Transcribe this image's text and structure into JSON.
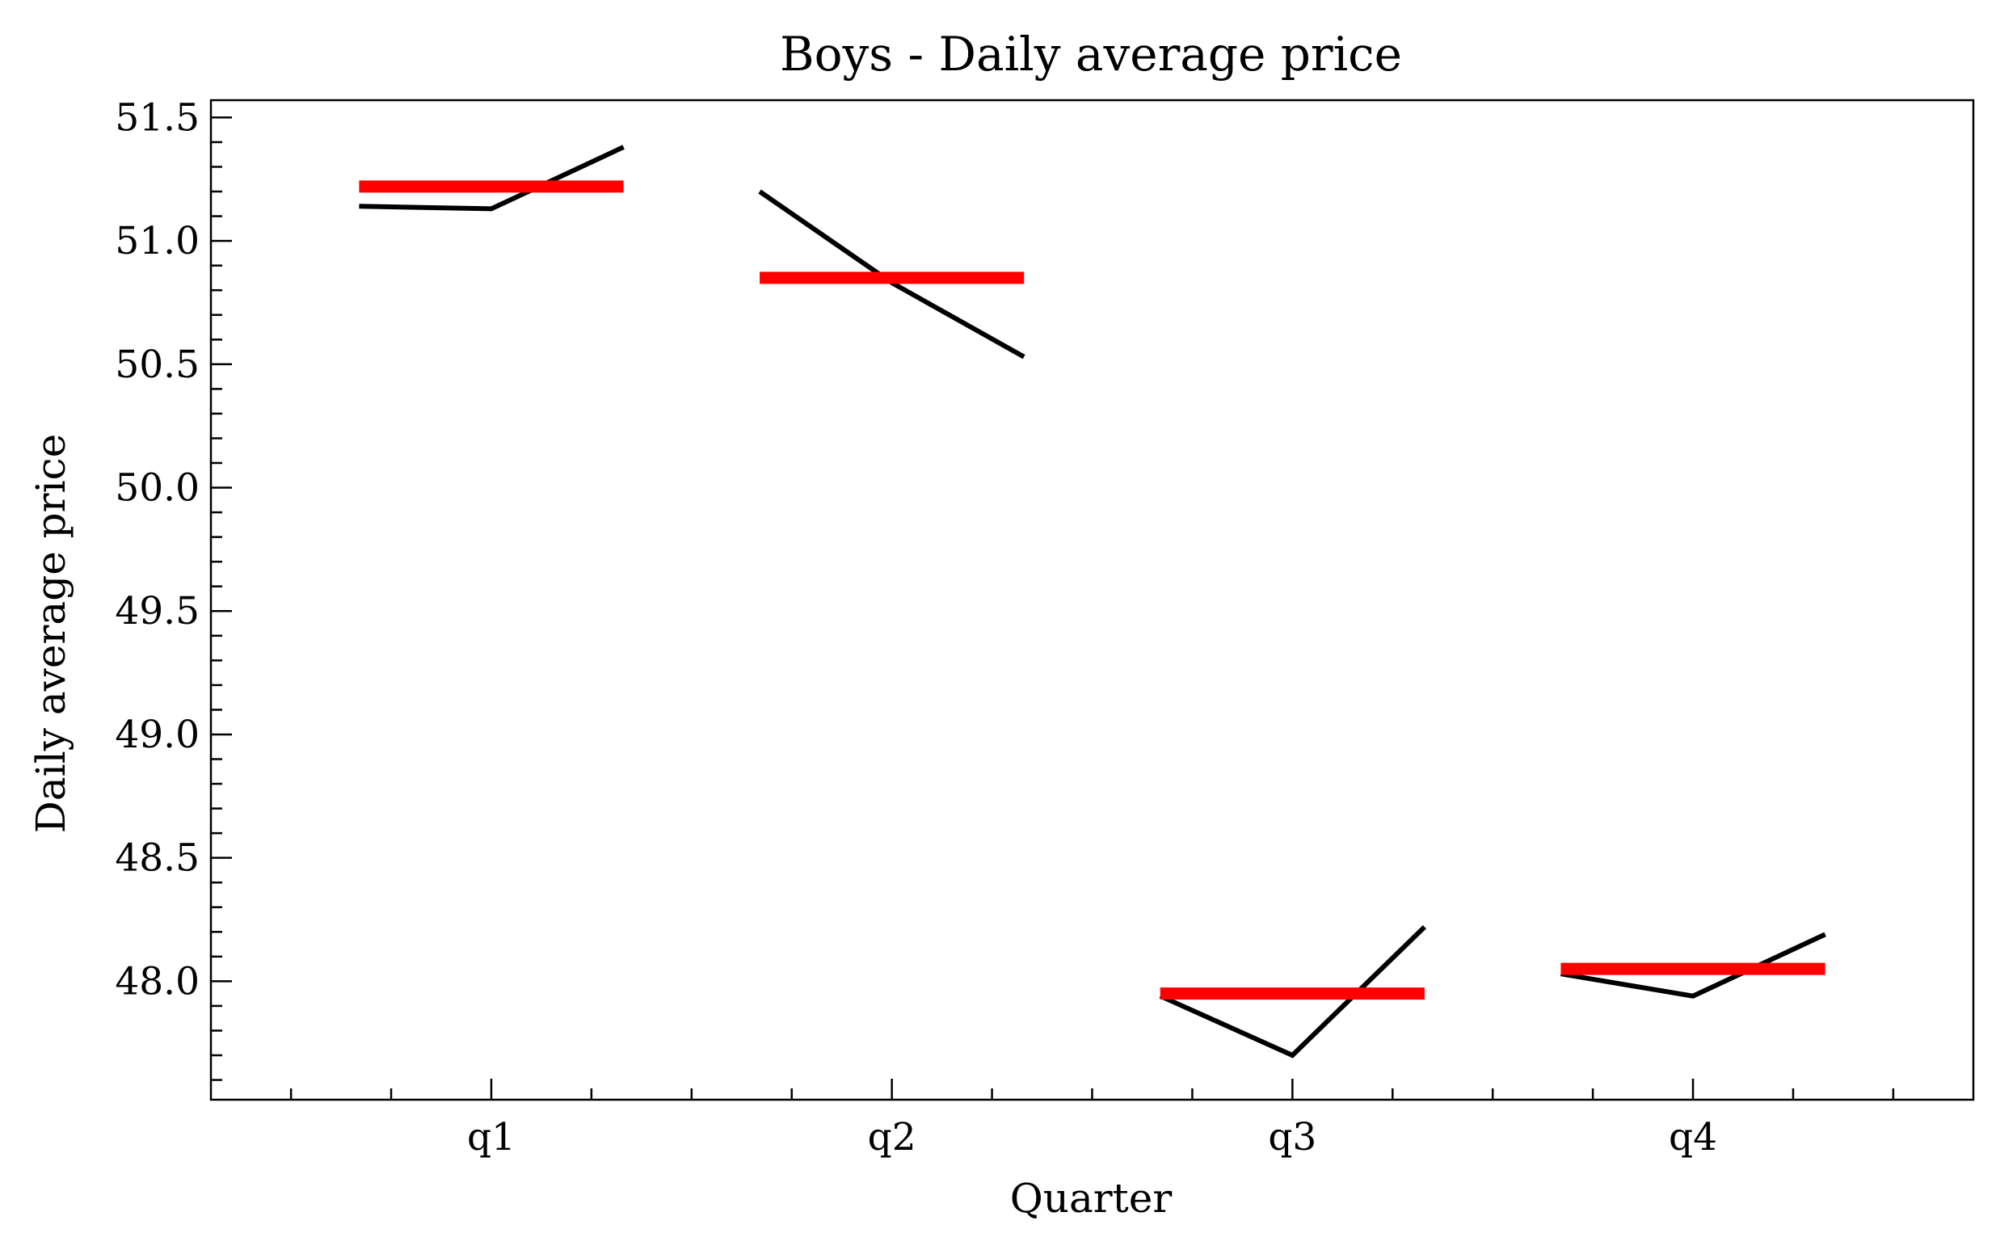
{
  "chart_data": {
    "type": "line",
    "title": "Boys - Daily average price",
    "xlabel": "Quarter",
    "ylabel": "Daily average price",
    "categories": [
      "q1",
      "q2",
      "q3",
      "q4"
    ],
    "ylim": [
      47.52,
      51.57
    ],
    "y_ticks": [
      "48.0",
      "48.5",
      "49.0",
      "49.5",
      "50.0",
      "50.5",
      "51.0",
      "51.5"
    ],
    "grid": false,
    "series": [
      {
        "category": "q1",
        "points": [
          51.14,
          51.13,
          51.38
        ],
        "mean": 51.22
      },
      {
        "category": "q2",
        "points": [
          51.2,
          50.83,
          50.53
        ],
        "mean": 50.85
      },
      {
        "category": "q3",
        "points": [
          47.94,
          47.7,
          48.22
        ],
        "mean": 47.95
      },
      {
        "category": "q4",
        "points": [
          48.03,
          47.94,
          48.19
        ],
        "mean": 48.05
      }
    ],
    "colors": {
      "series": "#000000",
      "mean": "#ff0000"
    }
  }
}
